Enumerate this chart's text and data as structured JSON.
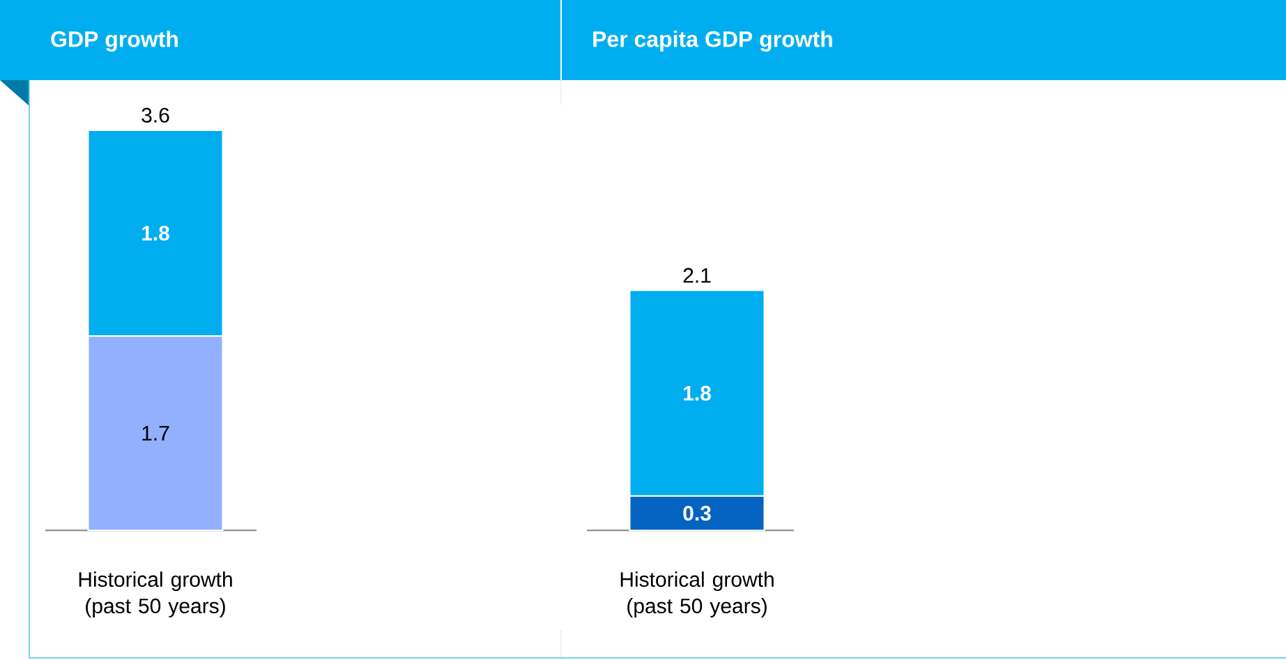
{
  "chart_data": [
    {
      "type": "bar",
      "title": "GDP growth",
      "categories": [
        "Historical growth (past 50 years)"
      ],
      "stacked": true,
      "series": [
        {
          "color": "#92b0fe",
          "values": [
            1.7
          ]
        },
        {
          "color": "#00adef",
          "values": [
            1.8
          ]
        }
      ],
      "data_labels": true,
      "totals": [
        "3.6"
      ],
      "tick_labels": "x"
    },
    {
      "type": "bar",
      "title": "Per capita GDP growth",
      "categories": [
        "Historical growth (past 50 years)"
      ],
      "stacked": true,
      "series": [
        {
          "color": "#0563c1",
          "values": [
            0.3
          ]
        },
        {
          "color": "#00adef",
          "values": [
            1.8
          ]
        }
      ],
      "data_labels": true,
      "totals": [
        "2.1"
      ],
      "tick_labels": "x"
    }
  ]
}
